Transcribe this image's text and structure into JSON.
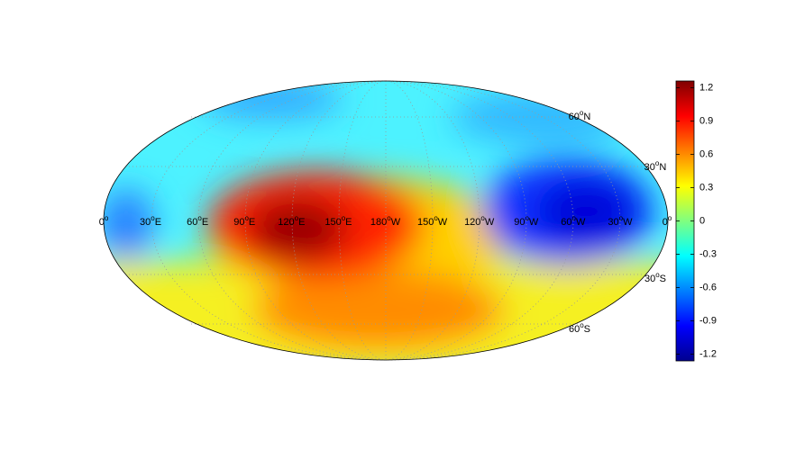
{
  "map": {
    "degree_mark": "o",
    "longitude_labels": [
      {
        "deg": "0",
        "suffix": ""
      },
      {
        "deg": "30",
        "suffix": "E"
      },
      {
        "deg": "60",
        "suffix": "E"
      },
      {
        "deg": "90",
        "suffix": "E"
      },
      {
        "deg": "120",
        "suffix": "E"
      },
      {
        "deg": "150",
        "suffix": "E"
      },
      {
        "deg": "180",
        "suffix": "W"
      },
      {
        "deg": "150",
        "suffix": "W"
      },
      {
        "deg": "120",
        "suffix": "W"
      },
      {
        "deg": "90",
        "suffix": "W"
      },
      {
        "deg": "60",
        "suffix": "W"
      },
      {
        "deg": "30",
        "suffix": "W"
      },
      {
        "deg": "0",
        "suffix": ""
      }
    ],
    "latitude_labels": [
      {
        "deg": "60",
        "suffix": "N"
      },
      {
        "deg": "30",
        "suffix": "N"
      },
      {
        "deg": "30",
        "suffix": "S"
      },
      {
        "deg": "60",
        "suffix": "S"
      }
    ],
    "colorbar": {
      "lim": [
        -1.26,
        1.26
      ],
      "ticks": [
        -1.2,
        -0.9,
        -0.6,
        -0.3,
        0,
        0.3,
        0.6,
        0.9,
        1.2
      ]
    }
  }
}
